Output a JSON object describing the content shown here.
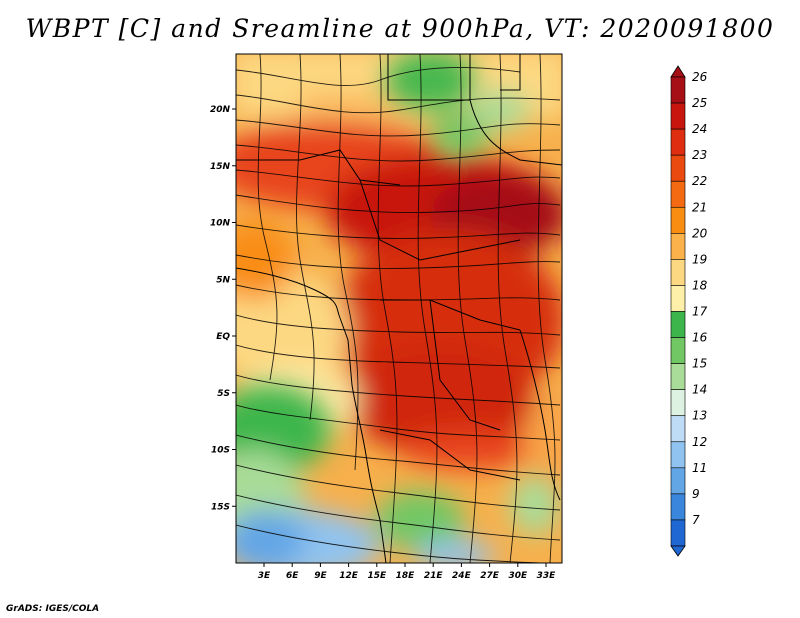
{
  "title": "WBPT [C] and Sreamline at 900hPa, VT: 2020091800",
  "footer": "GrADS: IGES/COLA",
  "map": {
    "variable": "WBPT",
    "units": "C",
    "level": "900hPa",
    "valid_time": "2020091800",
    "lat_ticks": [
      {
        "value": 20,
        "label": "20N"
      },
      {
        "value": 15,
        "label": "15N"
      },
      {
        "value": 10,
        "label": "10N"
      },
      {
        "value": 5,
        "label": "5N"
      },
      {
        "value": 0,
        "label": "EQ"
      },
      {
        "value": -5,
        "label": "5S"
      },
      {
        "value": -10,
        "label": "10S"
      },
      {
        "value": -15,
        "label": "15S"
      }
    ],
    "lon_ticks": [
      {
        "value": 3,
        "label": "3E"
      },
      {
        "value": 6,
        "label": "6E"
      },
      {
        "value": 9,
        "label": "9E"
      },
      {
        "value": 12,
        "label": "12E"
      },
      {
        "value": 15,
        "label": "15E"
      },
      {
        "value": 18,
        "label": "18E"
      },
      {
        "value": 21,
        "label": "21E"
      },
      {
        "value": 24,
        "label": "24E"
      },
      {
        "value": 27,
        "label": "27E"
      },
      {
        "value": 30,
        "label": "30E"
      },
      {
        "value": 33,
        "label": "33E"
      }
    ]
  },
  "colorbar": {
    "labels": [
      "26",
      "25",
      "24",
      "23",
      "22",
      "21",
      "20",
      "19",
      "18",
      "17",
      "16",
      "15",
      "14",
      "13",
      "12",
      "11",
      "9",
      "7"
    ],
    "colors": [
      "#a50f15",
      "#c8150e",
      "#de2d10",
      "#ea4a10",
      "#f46a12",
      "#f98d12",
      "#fbb24a",
      "#fdd882",
      "#fef0a8",
      "#3cb64b",
      "#72c765",
      "#a9dc98",
      "#ddf2e0",
      "#bfdcf6",
      "#90c3ef",
      "#63a6e6",
      "#3a86dc",
      "#1f67d2"
    ]
  }
}
